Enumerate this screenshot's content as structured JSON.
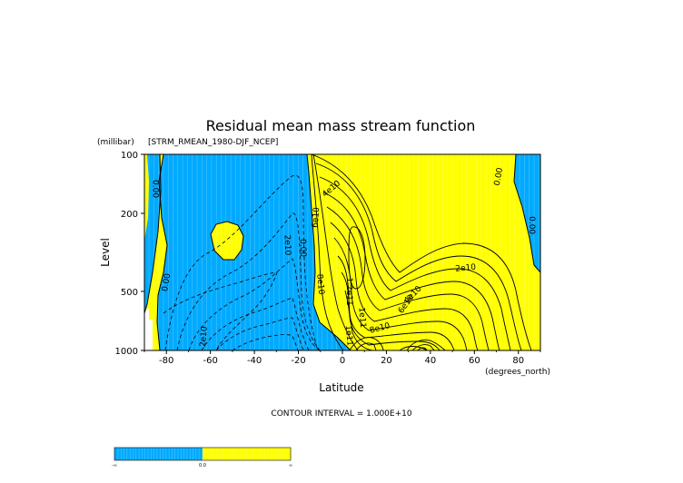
{
  "chart_data": {
    "type": "contour",
    "title": "Residual mean mass stream function",
    "subtitle": "[STRM_RMEAN_1980-DJF_NCEP]",
    "xlabel": "Latitude",
    "ylabel": "Level",
    "xunits": "(degrees_north)",
    "yunits": "(millibar)",
    "xlim": [
      -90,
      90
    ],
    "ylim": [
      1000,
      100
    ],
    "yscale": "log",
    "x_ticks": [
      -80,
      -60,
      -40,
      -20,
      0,
      20,
      40,
      60,
      80
    ],
    "x_tick_labels": [
      "-80",
      "-60",
      "-40",
      "-20",
      "0",
      "20",
      "40",
      "60",
      "80"
    ],
    "y_ticks": [
      100,
      200,
      500,
      1000
    ],
    "y_tick_labels": [
      "100",
      "200",
      "500",
      "1000"
    ],
    "contour_interval_text": "CONTOUR INTERVAL = 1.000E+10",
    "contour_labels": [
      {
        "text": "0.00",
        "lat": -85,
        "lev": 150,
        "angle": 90
      },
      {
        "text": "0.00",
        "lat": -80,
        "lev": 450,
        "angle": -80
      },
      {
        "text": "2e10",
        "lat": -63,
        "lev": 850,
        "angle": -85
      },
      {
        "text": "2e10",
        "lat": -25,
        "lev": 290,
        "angle": 88
      },
      {
        "text": "0.00",
        "lat": -18,
        "lev": 300,
        "angle": 88
      },
      {
        "text": "4e10",
        "lat": -5,
        "lev": 150,
        "angle": -40
      },
      {
        "text": "6e10",
        "lat": -12,
        "lev": 210,
        "angle": -85
      },
      {
        "text": "8e10",
        "lat": -10,
        "lev": 460,
        "angle": 85
      },
      {
        "text": "1.2e11",
        "lat": 3,
        "lev": 500,
        "angle": 90
      },
      {
        "text": "1e11",
        "lat": 9,
        "lev": 680,
        "angle": 85
      },
      {
        "text": "1e11",
        "lat": 3,
        "lev": 840,
        "angle": 85
      },
      {
        "text": "8e10",
        "lat": 17,
        "lev": 770,
        "angle": -15
      },
      {
        "text": "6e10",
        "lat": 29,
        "lev": 580,
        "angle": -55
      },
      {
        "text": "4e10",
        "lat": 32,
        "lev": 520,
        "angle": -45
      },
      {
        "text": "2e10",
        "lat": 56,
        "lev": 380,
        "angle": -5
      },
      {
        "text": "0.00",
        "lat": 71,
        "lev": 130,
        "angle": -80
      },
      {
        "text": "0.00",
        "lat": 86,
        "lev": 230,
        "angle": 90
      }
    ],
    "colorbar": {
      "colors": [
        "#00aaff",
        "#ffff00"
      ],
      "labels": [
        "-∞",
        "0.0",
        "∞"
      ]
    },
    "colors": {
      "negative": "#00aaff",
      "positive": "#ffff00",
      "missing": "#ffffff"
    }
  }
}
